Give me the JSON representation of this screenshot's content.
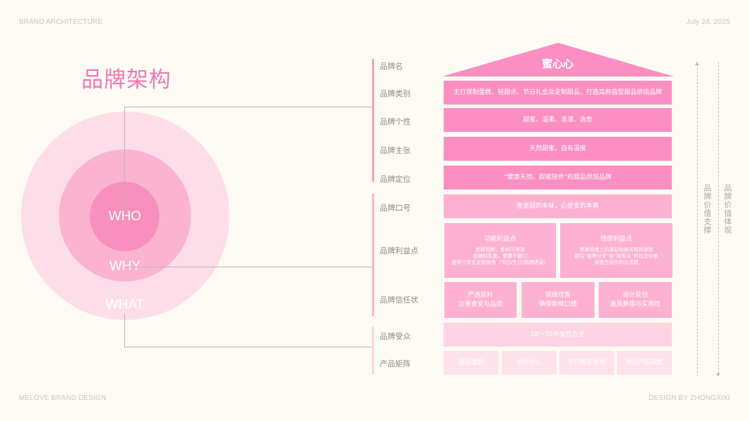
{
  "corners": {
    "top_left": "BRAND ARCHITECTURE",
    "top_right": "July 24, 2025",
    "bottom_left": "MELOVE BRAND DESIGN",
    "bottom_right": "DESIGN BY ZHONGXIXI"
  },
  "title": "品牌架构",
  "circles": {
    "inner": "WHO",
    "middle": "WHY",
    "outer": "WHAT"
  },
  "row_labels": {
    "name": "品牌名",
    "category": "品牌类别",
    "personality": "品牌个性",
    "claim": "品牌主张",
    "positioning": "品牌定位",
    "slogan": "品牌口号",
    "benefits": "品牌利益点",
    "trust": "品牌信任状",
    "audience": "品牌受众",
    "products": "产品矩阵"
  },
  "boxes": {
    "name": "蜜心心",
    "category": "主打现制蛋糕、轻甜点、节日礼盒及定制甜品，打造高颜值型甜品烘焙品牌",
    "personality": "甜蜜、温柔、浪漫、治愈",
    "claim": "天然甜蜜，自有温度",
    "positioning": "“健康天然、甜蜜陪伴”的甜品烘焙品牌",
    "slogan": "蜜是甜的本味，心是爱的本真",
    "benefit_functional": {
      "title": "功能利益点",
      "lines": [
        "新鲜现制，食材可溯源",
        "低糖轻乳脂，健康不腻口",
        "提供个性化定制服务（节日/生日/情绪语录）"
      ]
    },
    "benefit_emotional": {
      "title": "情感利益点",
      "lines": [
        "带来情绪上的满足和被关照的体验",
        "提供“值得分享”和“被看见”的社交价值",
        "营造生活中的仪式感"
      ]
    },
    "trust": [
      {
        "title": "严选原料",
        "sub": "注重食安与品质"
      },
      {
        "title": "现做现售",
        "sub": "确保新鲜口感"
      },
      {
        "title": "设计原创",
        "sub": "兼具美感与实用性"
      }
    ],
    "audience": "18～35岁女性为主",
    "products": [
      "甜品蛋糕",
      "治愈点心",
      "节日限定系列",
      "周边产品销售"
    ]
  },
  "side_labels": {
    "support": "品牌价值支撑",
    "reflect": "品牌价值体现"
  },
  "colors": {
    "title": "#f277b4",
    "main_box": "#fb8fc1",
    "mid_box": "#fdb1d0",
    "light_box": "#fdd4e3",
    "lightest_box": "#fde2ec",
    "circle_outer": "#fcdde8",
    "circle_middle": "#fbb3cf",
    "circle_inner": "#f98fbc"
  }
}
